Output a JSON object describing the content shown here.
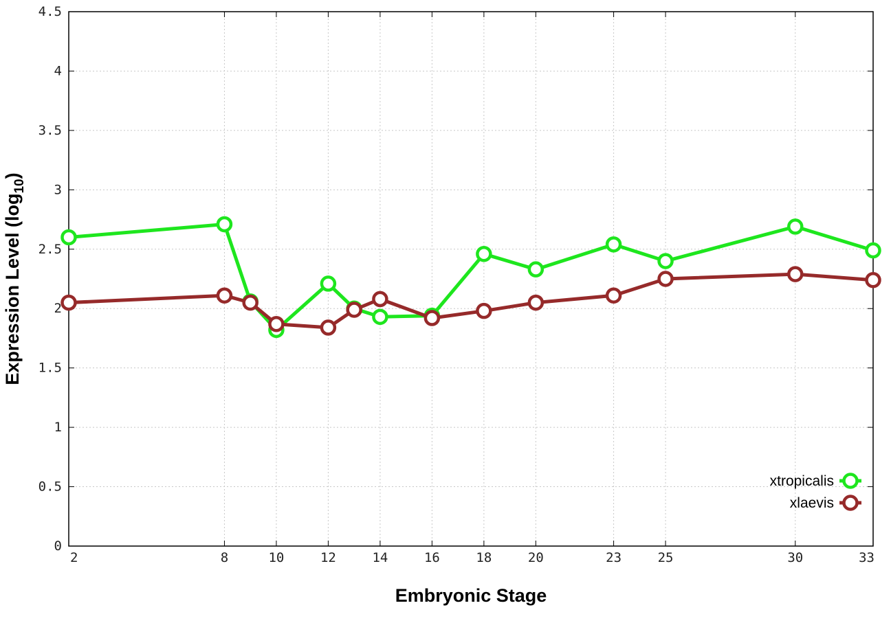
{
  "chart_data": {
    "type": "line",
    "xlabel": "Embryonic Stage",
    "ylabel_main": "Expression Level (log",
    "ylabel_sub": "10",
    "ylabel_close": ")",
    "xlim": [
      2,
      33
    ],
    "ylim": [
      0,
      4.5
    ],
    "x_ticks": [
      2,
      8,
      10,
      12,
      14,
      16,
      18,
      20,
      23,
      25,
      30,
      33
    ],
    "y_ticks": [
      {
        "value": 0,
        "label": "0"
      },
      {
        "value": 0.5,
        "label": "0.5"
      },
      {
        "value": 1,
        "label": "1"
      },
      {
        "value": 1.5,
        "label": "1.5"
      },
      {
        "value": 2,
        "label": "2"
      },
      {
        "value": 2.5,
        "label": "2.5"
      },
      {
        "value": 3,
        "label": "3"
      },
      {
        "value": 3.5,
        "label": "3.5"
      },
      {
        "value": 4,
        "label": "4"
      },
      {
        "value": 4.5,
        "label": "4.5"
      }
    ],
    "grid": true,
    "legend_position": "bottom-right",
    "series": [
      {
        "name": "xtropicalis",
        "color": "#1ee61e",
        "points": [
          [
            2,
            2.6
          ],
          [
            8,
            2.71
          ],
          [
            9,
            2.06
          ],
          [
            10,
            1.82
          ],
          [
            12,
            2.21
          ],
          [
            13,
            2.0
          ],
          [
            14,
            1.93
          ],
          [
            16,
            1.94
          ],
          [
            18,
            2.46
          ],
          [
            20,
            2.33
          ],
          [
            23,
            2.54
          ],
          [
            25,
            2.4
          ],
          [
            30,
            2.69
          ],
          [
            33,
            2.49
          ]
        ]
      },
      {
        "name": "xlaevis",
        "color": "#962a2a",
        "points": [
          [
            2,
            2.05
          ],
          [
            8,
            2.11
          ],
          [
            9,
            2.05
          ],
          [
            10,
            1.87
          ],
          [
            12,
            1.84
          ],
          [
            13,
            1.99
          ],
          [
            14,
            2.08
          ],
          [
            16,
            1.92
          ],
          [
            18,
            1.98
          ],
          [
            20,
            2.05
          ],
          [
            23,
            2.11
          ],
          [
            25,
            2.25
          ],
          [
            30,
            2.29
          ],
          [
            33,
            2.24
          ]
        ]
      }
    ]
  }
}
